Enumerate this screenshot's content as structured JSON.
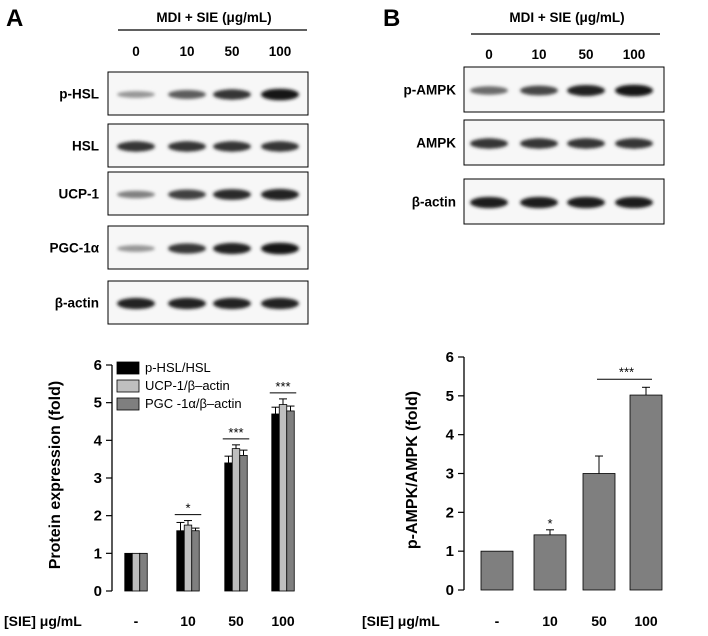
{
  "panels": [
    {
      "letter": "A",
      "treatment_label": "MDI  + SIE (μg/mL)",
      "doses": [
        "0",
        "10",
        "50",
        "100"
      ],
      "blots": [
        {
          "label": "p-HSL",
          "intensity": [
            0.35,
            0.62,
            0.8,
            0.95
          ]
        },
        {
          "label": "HSL",
          "intensity": [
            0.8,
            0.8,
            0.8,
            0.8
          ]
        },
        {
          "label": "UCP-1",
          "intensity": [
            0.45,
            0.75,
            0.85,
            0.9
          ]
        },
        {
          "label": "PGC-1α",
          "intensity": [
            0.35,
            0.78,
            0.9,
            0.95
          ]
        },
        {
          "label": "β-actin",
          "intensity": [
            0.9,
            0.9,
            0.9,
            0.9
          ]
        }
      ]
    },
    {
      "letter": "B",
      "treatment_label": "MDI  + SIE (μg/mL)",
      "doses": [
        "0",
        "10",
        "50",
        "100"
      ],
      "blots": [
        {
          "label": "p-AMPK",
          "intensity": [
            0.55,
            0.72,
            0.88,
            0.95
          ]
        },
        {
          "label": "AMPK",
          "intensity": [
            0.8,
            0.8,
            0.8,
            0.8
          ]
        },
        {
          "label": "β-actin",
          "intensity": [
            0.92,
            0.92,
            0.92,
            0.92
          ]
        }
      ]
    }
  ],
  "chart_data": [
    {
      "type": "bar",
      "categories": [
        "-",
        "10",
        "50",
        "100"
      ],
      "xlabel": "[SIE] μg/mL",
      "ylabel": "Protein expression (fold)",
      "ylim": [
        0,
        6
      ],
      "yticks": [
        "0",
        "1",
        "2",
        "3",
        "4",
        "5",
        "6"
      ],
      "series": [
        {
          "name": "p-HSL/HSL",
          "color": "#000000",
          "values": [
            1.0,
            1.6,
            3.4,
            4.7
          ],
          "errors": [
            0,
            0.22,
            0.18,
            0.18
          ]
        },
        {
          "name": "UCP-1/β–actin",
          "color": "#bfbfbf",
          "values": [
            1.0,
            1.75,
            3.78,
            4.95
          ],
          "errors": [
            0,
            0.12,
            0.1,
            0.15
          ]
        },
        {
          "name": "PGC -1α/β–actin",
          "color": "#7f7f7f",
          "values": [
            1.0,
            1.6,
            3.6,
            4.78
          ],
          "errors": [
            0,
            0.07,
            0.14,
            0.13
          ]
        }
      ],
      "significance": [
        "",
        "*",
        "***",
        "***"
      ],
      "legend": "top-left"
    },
    {
      "type": "bar",
      "categories": [
        "-",
        "10",
        "50",
        "100"
      ],
      "xlabel": "[SIE] μg/mL",
      "ylabel": "p-AMPK/AMPK (fold)",
      "ylim": [
        0,
        6
      ],
      "yticks": [
        "0",
        "1",
        "2",
        "3",
        "4",
        "5",
        "6"
      ],
      "series": [
        {
          "color": "#7f7f7f",
          "values": [
            1.0,
            1.42,
            3.0,
            5.02
          ],
          "errors": [
            0,
            0.13,
            0.45,
            0.2
          ]
        }
      ],
      "significance": [
        "",
        "*",
        "***",
        "***"
      ],
      "significance_bracket": [
        2,
        3
      ]
    }
  ]
}
